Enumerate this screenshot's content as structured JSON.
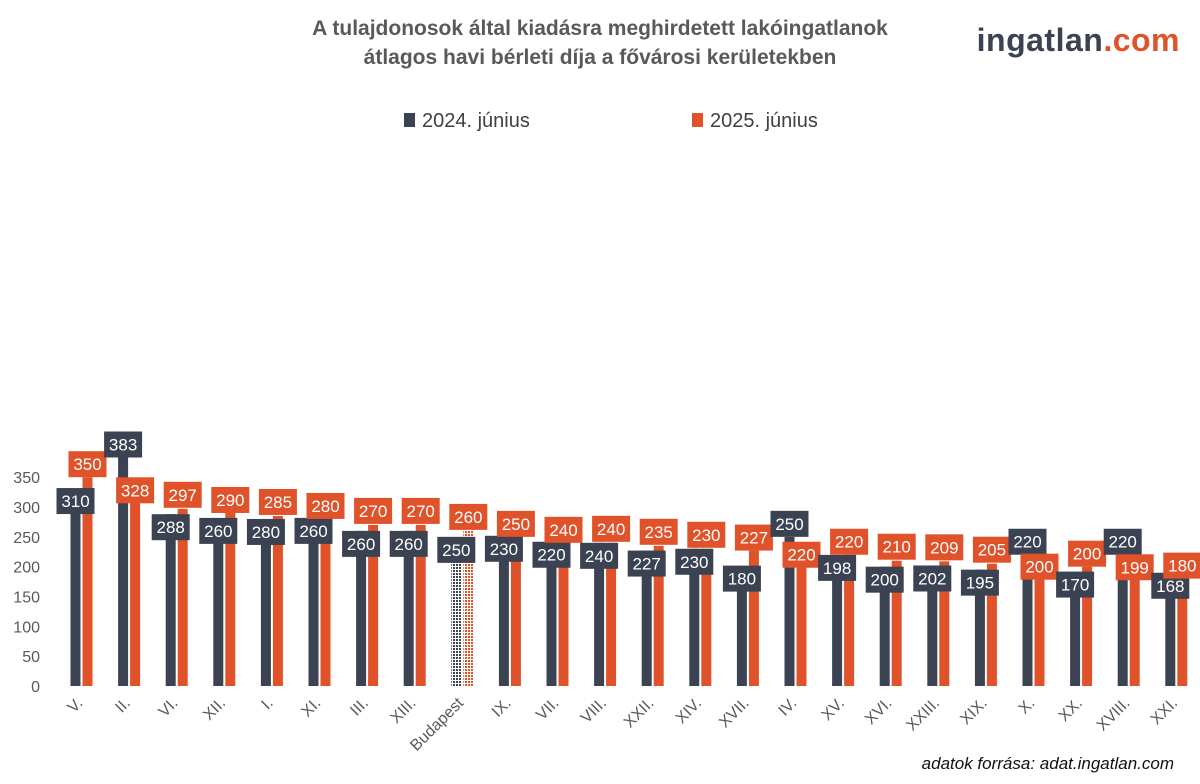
{
  "chart_data": {
    "type": "bar",
    "title_lines": [
      "A tulajdonosok által kiadásra meghirdetett lakóingatlanok",
      "átlagos havi bérleti díja a fővárosi kerületekben"
    ],
    "xlabel": "",
    "ylabel": "",
    "ylim": [
      0,
      400
    ],
    "yticks": [
      0,
      50,
      100,
      150,
      200,
      250,
      300,
      350
    ],
    "grid": false,
    "legend_position": "top-center",
    "highlight_category": "Budapest",
    "categories": [
      "V.",
      "II.",
      "VI.",
      "XII.",
      "I.",
      "XI.",
      "III.",
      "XIII.",
      "Budapest",
      "IX.",
      "VII.",
      "VIII.",
      "XXII.",
      "XIV.",
      "XVII.",
      "IV.",
      "XV.",
      "XVI.",
      "XXIII.",
      "XIX.",
      "X.",
      "XX.",
      "XVIII.",
      "XXI."
    ],
    "series": [
      {
        "name": "2024. június",
        "color": "#3b4252",
        "values": [
          310,
          383,
          288,
          260,
          280,
          260,
          260,
          260,
          250,
          230,
          220,
          240,
          227,
          230,
          180,
          250,
          198,
          200,
          202,
          195,
          220,
          170,
          220,
          168
        ]
      },
      {
        "name": "2025. június",
        "color": "#e0522a",
        "values": [
          350,
          328,
          297,
          290,
          285,
          280,
          270,
          270,
          260,
          250,
          240,
          240,
          235,
          230,
          227,
          220,
          220,
          210,
          209,
          205,
          200,
          200,
          199,
          180
        ]
      }
    ]
  },
  "logo": {
    "main": "ingatlan",
    "accent": ".com"
  },
  "footer": {
    "source": "adatok forrása: adat.ingatlan.com"
  }
}
